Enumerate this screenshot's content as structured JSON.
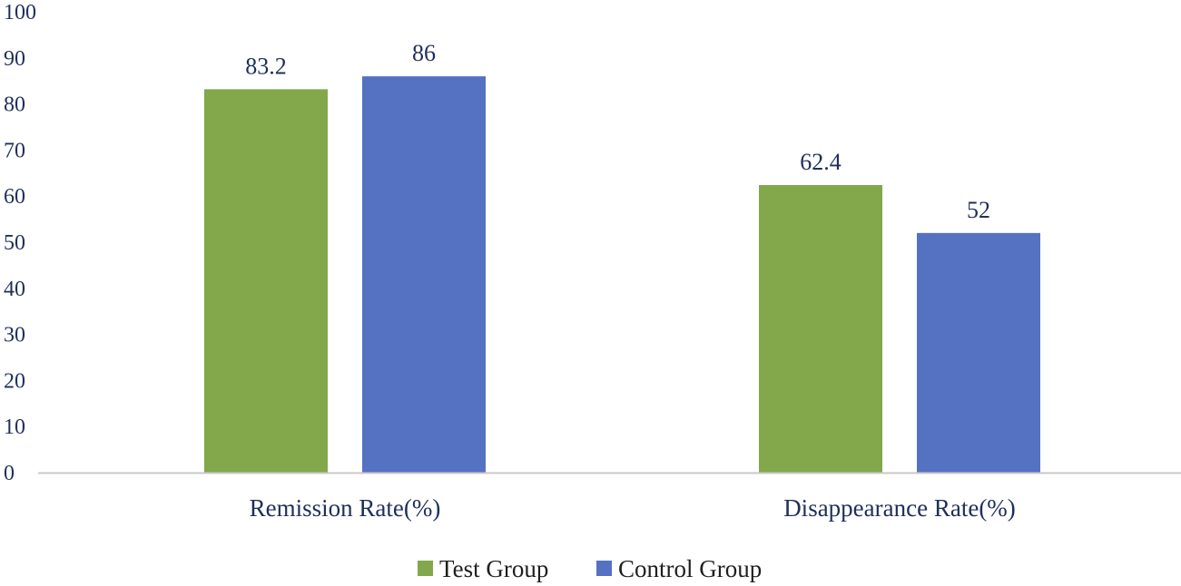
{
  "chart_data": {
    "type": "bar",
    "title": "",
    "xlabel": "",
    "ylabel": "",
    "categories": [
      "Remission Rate(%)",
      "Disappearance Rate(%)"
    ],
    "series": [
      {
        "name": "Test Group",
        "values": [
          83.2,
          62.4
        ],
        "labels": [
          "83.2",
          "62.4"
        ],
        "color": "#82a84b"
      },
      {
        "name": "Control Group",
        "values": [
          86,
          52
        ],
        "labels": [
          "86",
          "52"
        ],
        "color": "#5572c2"
      }
    ],
    "ylim": [
      0,
      100
    ],
    "yticks": [
      "0",
      "10",
      "20",
      "30",
      "40",
      "50",
      "60",
      "70",
      "80",
      "90",
      "100"
    ],
    "grid": false,
    "legend": "bottom-center",
    "axis_color": "#c8c8c8"
  }
}
